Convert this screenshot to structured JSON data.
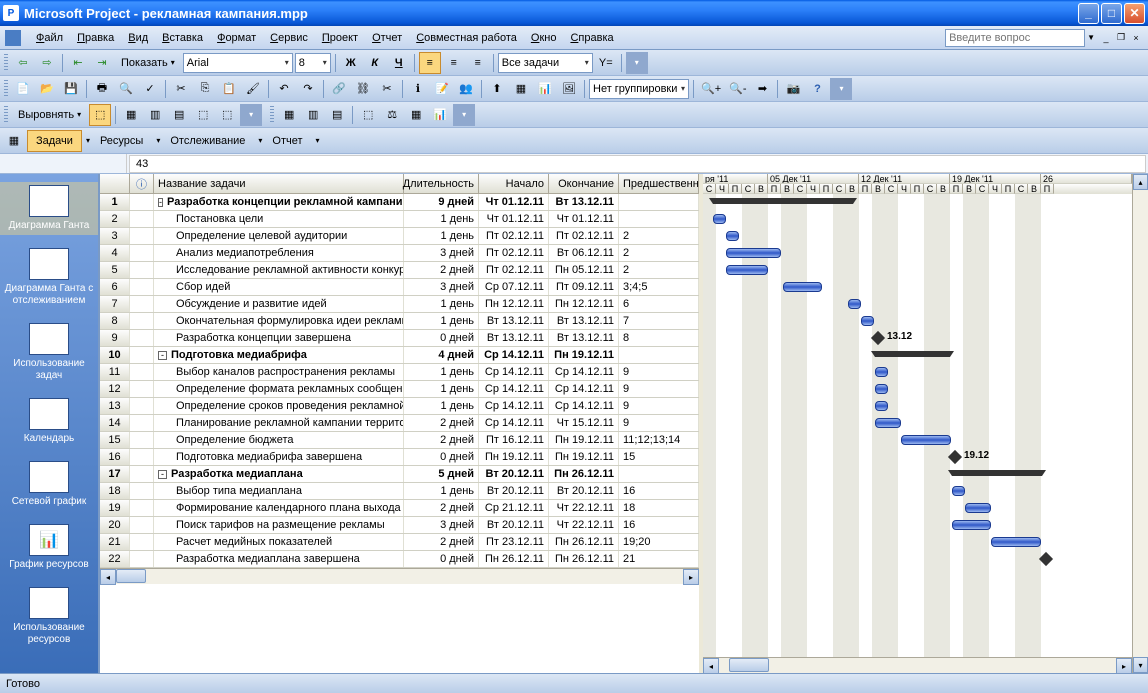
{
  "window": {
    "title": "Microsoft Project - рекламная кампания.mpp"
  },
  "menus": [
    "Файл",
    "Правка",
    "Вид",
    "Вставка",
    "Формат",
    "Сервис",
    "Проект",
    "Отчет",
    "Совместная работа",
    "Окно",
    "Справка"
  ],
  "askbox": "Введите вопрос",
  "formatbar": {
    "show": "Показать",
    "font": "Arial",
    "size": "8",
    "alltasks": "Все задачи"
  },
  "std": {
    "grouping": "Нет группировки"
  },
  "align": {
    "label": "Выровнять"
  },
  "tabs": {
    "tasks": "Задачи",
    "resources": "Ресурсы",
    "tracking": "Отслеживание",
    "report": "Отчет"
  },
  "formula": {
    "value": "43"
  },
  "views": [
    {
      "label": "Диаграмма Ганта",
      "active": true,
      "glyph": "▦"
    },
    {
      "label": "Диаграмма Ганта с отслеживанием",
      "glyph": "▦"
    },
    {
      "label": "Использование задач",
      "glyph": "▤"
    },
    {
      "label": "Календарь",
      "glyph": "▥"
    },
    {
      "label": "Сетевой график",
      "glyph": "⬚"
    },
    {
      "label": "График ресурсов",
      "glyph": "📊"
    },
    {
      "label": "Использование ресурсов",
      "glyph": "▤"
    }
  ],
  "columns": {
    "info": "ⓘ",
    "name": "Название задачи",
    "duration": "Длительность",
    "start": "Начало",
    "finish": "Окончание",
    "pred": "Предшественн"
  },
  "timescale": {
    "weeks": [
      "ря '11",
      "05 Дек '11",
      "12 Дек '11",
      "19 Дек '11",
      "26"
    ],
    "days": "С Ч П С В П В С Ч П С В П В С Ч П С В П В С Ч П С В П"
  },
  "tasks": [
    {
      "id": 1,
      "name": "Разработка концепции рекламной кампании",
      "dur": "9 дней",
      "start": "Чт 01.12.11",
      "finish": "Вт 13.12.11",
      "pred": "",
      "level": 0,
      "summary": true,
      "barStart": 10,
      "barLen": 140
    },
    {
      "id": 2,
      "name": "Постановка цели",
      "dur": "1 день",
      "start": "Чт 01.12.11",
      "finish": "Чт 01.12.11",
      "pred": "",
      "level": 1,
      "barStart": 10,
      "barLen": 13
    },
    {
      "id": 3,
      "name": "Определение целевой аудитории",
      "dur": "1 день",
      "start": "Пт 02.12.11",
      "finish": "Пт 02.12.11",
      "pred": "2",
      "level": 1,
      "barStart": 23,
      "barLen": 13
    },
    {
      "id": 4,
      "name": "Анализ медиапотребления",
      "dur": "3 дней",
      "start": "Пт 02.12.11",
      "finish": "Вт 06.12.11",
      "pred": "2",
      "level": 1,
      "barStart": 23,
      "barLen": 55
    },
    {
      "id": 5,
      "name": "Исследование рекламной активности конкур",
      "dur": "2 дней",
      "start": "Пт 02.12.11",
      "finish": "Пн 05.12.11",
      "pred": "2",
      "level": 1,
      "barStart": 23,
      "barLen": 42
    },
    {
      "id": 6,
      "name": "Сбор идей",
      "dur": "3 дней",
      "start": "Ср 07.12.11",
      "finish": "Пт 09.12.11",
      "pred": "3;4;5",
      "level": 1,
      "barStart": 80,
      "barLen": 39
    },
    {
      "id": 7,
      "name": "Обсуждение и развитие идей",
      "dur": "1 день",
      "start": "Пн 12.12.11",
      "finish": "Пн 12.12.11",
      "pred": "6",
      "level": 1,
      "barStart": 145,
      "barLen": 13
    },
    {
      "id": 8,
      "name": "Окончательная формулировка идеи рекламнс",
      "dur": "1 день",
      "start": "Вт 13.12.11",
      "finish": "Вт 13.12.11",
      "pred": "7",
      "level": 1,
      "barStart": 158,
      "barLen": 13
    },
    {
      "id": 9,
      "name": "Разработка концепции завершена",
      "dur": "0 дней",
      "start": "Вт 13.12.11",
      "finish": "Вт 13.12.11",
      "pred": "8",
      "level": 1,
      "milestone": true,
      "barStart": 170,
      "mlabel": "13.12"
    },
    {
      "id": 10,
      "name": "Подготовка медиабрифа",
      "dur": "4 дней",
      "start": "Ср 14.12.11",
      "finish": "Пн 19.12.11",
      "pred": "",
      "level": 0,
      "summary": true,
      "barStart": 172,
      "barLen": 75
    },
    {
      "id": 11,
      "name": "Выбор каналов распространения рекламы",
      "dur": "1 день",
      "start": "Ср 14.12.11",
      "finish": "Ср 14.12.11",
      "pred": "9",
      "level": 1,
      "barStart": 172,
      "barLen": 13
    },
    {
      "id": 12,
      "name": "Определение формата рекламных сообщений",
      "dur": "1 день",
      "start": "Ср 14.12.11",
      "finish": "Ср 14.12.11",
      "pred": "9",
      "level": 1,
      "barStart": 172,
      "barLen": 13
    },
    {
      "id": 13,
      "name": "Определение сроков проведения рекламной к",
      "dur": "1 день",
      "start": "Ср 14.12.11",
      "finish": "Ср 14.12.11",
      "pred": "9",
      "level": 1,
      "barStart": 172,
      "barLen": 13
    },
    {
      "id": 14,
      "name": "Планирование рекламной кампании территор",
      "dur": "2 дней",
      "start": "Ср 14.12.11",
      "finish": "Чт 15.12.11",
      "pred": "9",
      "level": 1,
      "barStart": 172,
      "barLen": 26
    },
    {
      "id": 15,
      "name": "Определение бюджета",
      "dur": "2 дней",
      "start": "Пт 16.12.11",
      "finish": "Пн 19.12.11",
      "pred": "11;12;13;14",
      "level": 1,
      "barStart": 198,
      "barLen": 50
    },
    {
      "id": 16,
      "name": "Подготовка медиабрифа завершена",
      "dur": "0 дней",
      "start": "Пн 19.12.11",
      "finish": "Пн 19.12.11",
      "pred": "15",
      "level": 1,
      "milestone": true,
      "barStart": 247,
      "mlabel": "19.12"
    },
    {
      "id": 17,
      "name": "Разработка медиаплана",
      "dur": "5 дней",
      "start": "Вт 20.12.11",
      "finish": "Пн 26.12.11",
      "pred": "",
      "level": 0,
      "summary": true,
      "barStart": 249,
      "barLen": 90
    },
    {
      "id": 18,
      "name": "Выбор типа медиаплана",
      "dur": "1 день",
      "start": "Вт 20.12.11",
      "finish": "Вт 20.12.11",
      "pred": "16",
      "level": 1,
      "barStart": 249,
      "barLen": 13
    },
    {
      "id": 19,
      "name": "Формирование календарного плана выхода р",
      "dur": "2 дней",
      "start": "Ср 21.12.11",
      "finish": "Чт 22.12.11",
      "pred": "18",
      "level": 1,
      "barStart": 262,
      "barLen": 26
    },
    {
      "id": 20,
      "name": "Поиск тарифов на размещение рекламы",
      "dur": "3 дней",
      "start": "Вт 20.12.11",
      "finish": "Чт 22.12.11",
      "pred": "16",
      "level": 1,
      "barStart": 249,
      "barLen": 39
    },
    {
      "id": 21,
      "name": "Расчет медийных показателей",
      "dur": "2 дней",
      "start": "Пт 23.12.11",
      "finish": "Пн 26.12.11",
      "pred": "19;20",
      "level": 1,
      "barStart": 288,
      "barLen": 50
    },
    {
      "id": 22,
      "name": "Разработка медиаплана завершена",
      "dur": "0 дней",
      "start": "Пн 26.12.11",
      "finish": "Пн 26.12.11",
      "pred": "21",
      "level": 1,
      "milestone": true,
      "barStart": 338
    }
  ],
  "gantt": {
    "dayWidth": 13,
    "firstDay": 2,
    "weekendColor": "#e8e8e0",
    "barGradient": [
      "#9bb8f0",
      "#3058c8"
    ],
    "summaryColor": "#333333",
    "milestoneColor": "#333333"
  },
  "status": "Готово",
  "colors": {
    "titlebar": "#0857d6",
    "toolbar": "#c5d6ef",
    "viewbar": "#5a88cc",
    "activeTab": "#fbd77f"
  }
}
